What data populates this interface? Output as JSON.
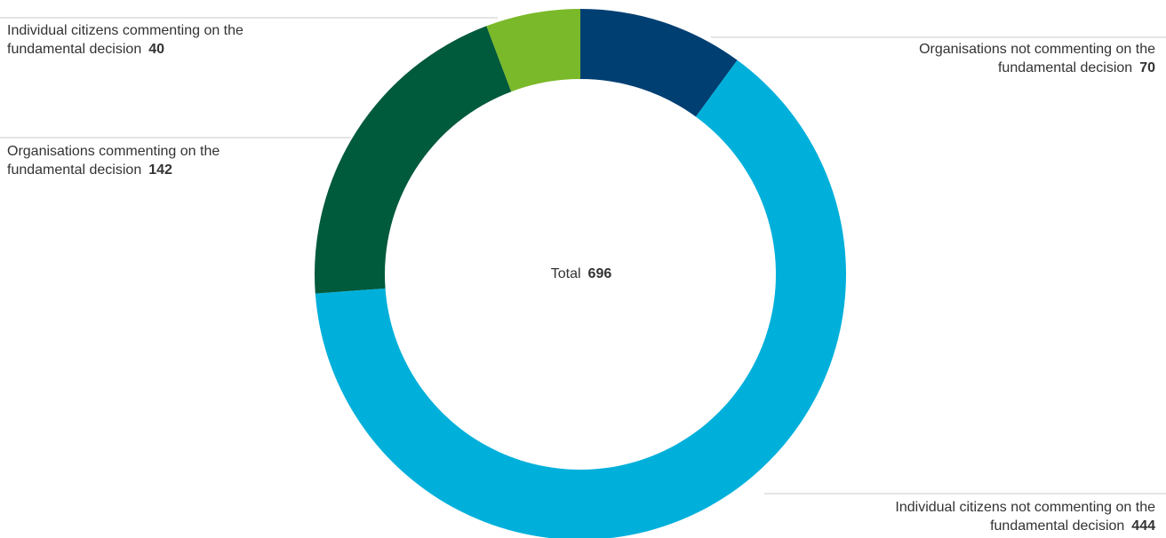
{
  "chart_data": {
    "type": "donut",
    "categories": [
      "Organisations not commenting on the fundamental decision",
      "Individual citizens not commenting on the fundamental decision",
      "Organisations commenting on the fundamental decision",
      "Individual citizens commenting on the fundamental decision"
    ],
    "values": [
      70,
      444,
      142,
      40
    ],
    "colors": [
      "#003f72",
      "#00b0db",
      "#005a3c",
      "#7ab929"
    ],
    "center_label": "Total",
    "total": 696
  }
}
